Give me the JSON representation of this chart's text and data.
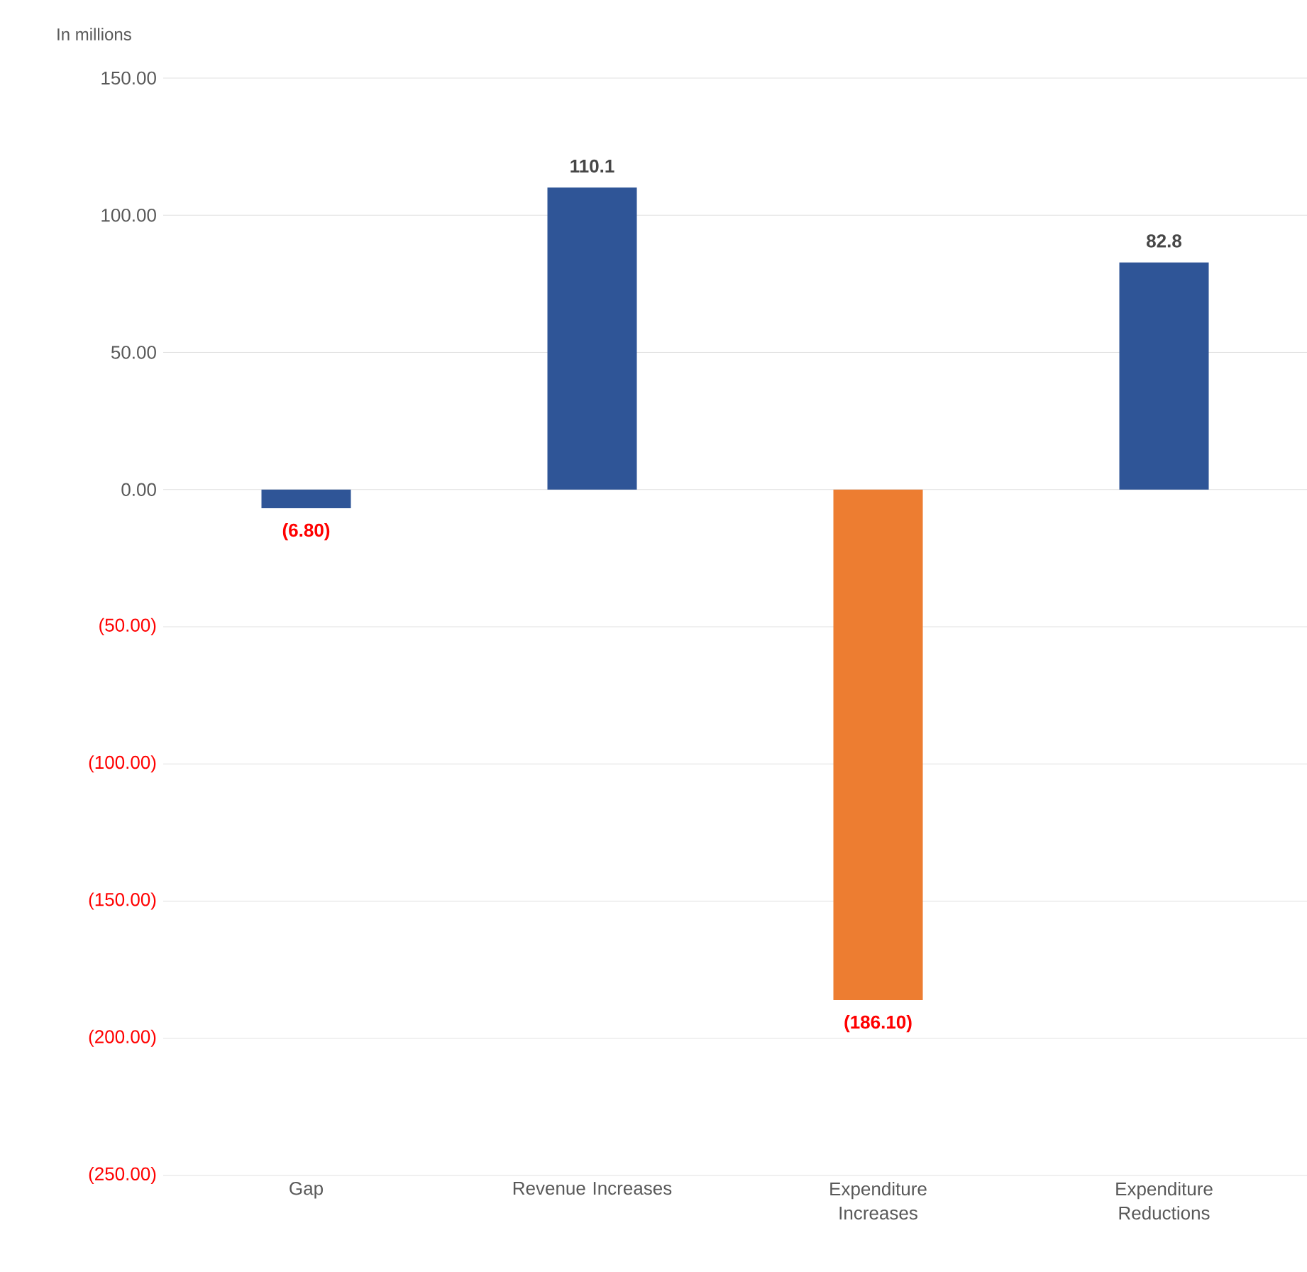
{
  "chart_data": {
    "type": "bar",
    "ylabel": "In millions",
    "categories": [
      "Gap",
      "Revenue Increases",
      "Expenditure Increases",
      "Expenditure Reductions"
    ],
    "values": [
      -6.8,
      110.1,
      -186.1,
      82.8
    ],
    "colors": [
      "#2f5597",
      "#2f5597",
      "#ed7d31",
      "#2f5597"
    ],
    "value_labels": [
      "(6.80)",
      "110.1",
      "(186.10)",
      "82.8"
    ],
    "ylim": [
      -250,
      150
    ],
    "yticks": [
      {
        "value": -250,
        "label": "(250.00)"
      },
      {
        "value": -200,
        "label": "(200.00)"
      },
      {
        "value": -150,
        "label": "(150.00)"
      },
      {
        "value": -100,
        "label": "(100.00)"
      },
      {
        "value": -50,
        "label": "(50.00)"
      },
      {
        "value": 0,
        "label": "0.00"
      },
      {
        "value": 50,
        "label": "50.00"
      },
      {
        "value": 100,
        "label": "100.00"
      },
      {
        "value": 150,
        "label": "150.00"
      }
    ],
    "grid": "y"
  }
}
